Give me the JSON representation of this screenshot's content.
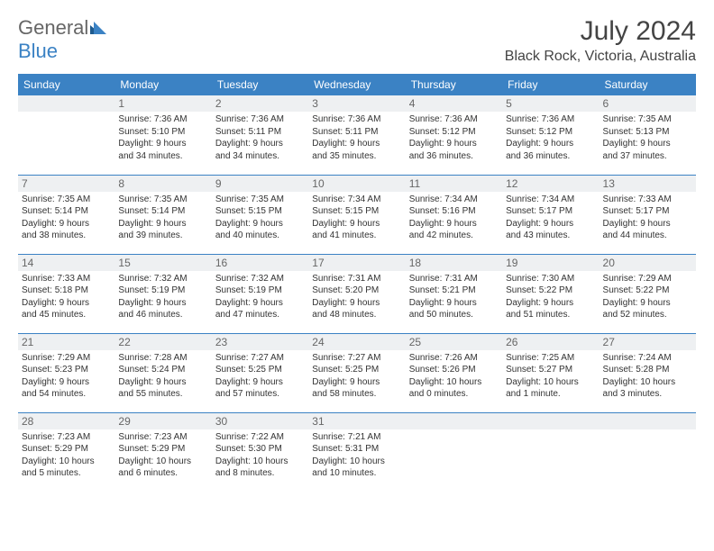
{
  "logo": {
    "text1": "General",
    "text2": "Blue"
  },
  "title": "July 2024",
  "location": "Black Rock, Victoria, Australia",
  "colors": {
    "header_bg": "#3b82c4",
    "header_text": "#ffffff",
    "daynum_bg": "#eef0f2",
    "border": "#3b82c4",
    "body_text": "#333333"
  },
  "day_headers": [
    "Sunday",
    "Monday",
    "Tuesday",
    "Wednesday",
    "Thursday",
    "Friday",
    "Saturday"
  ],
  "weeks": [
    [
      {
        "num": "",
        "lines": []
      },
      {
        "num": "1",
        "lines": [
          "Sunrise: 7:36 AM",
          "Sunset: 5:10 PM",
          "Daylight: 9 hours",
          "and 34 minutes."
        ]
      },
      {
        "num": "2",
        "lines": [
          "Sunrise: 7:36 AM",
          "Sunset: 5:11 PM",
          "Daylight: 9 hours",
          "and 34 minutes."
        ]
      },
      {
        "num": "3",
        "lines": [
          "Sunrise: 7:36 AM",
          "Sunset: 5:11 PM",
          "Daylight: 9 hours",
          "and 35 minutes."
        ]
      },
      {
        "num": "4",
        "lines": [
          "Sunrise: 7:36 AM",
          "Sunset: 5:12 PM",
          "Daylight: 9 hours",
          "and 36 minutes."
        ]
      },
      {
        "num": "5",
        "lines": [
          "Sunrise: 7:36 AM",
          "Sunset: 5:12 PM",
          "Daylight: 9 hours",
          "and 36 minutes."
        ]
      },
      {
        "num": "6",
        "lines": [
          "Sunrise: 7:35 AM",
          "Sunset: 5:13 PM",
          "Daylight: 9 hours",
          "and 37 minutes."
        ]
      }
    ],
    [
      {
        "num": "7",
        "lines": [
          "Sunrise: 7:35 AM",
          "Sunset: 5:14 PM",
          "Daylight: 9 hours",
          "and 38 minutes."
        ]
      },
      {
        "num": "8",
        "lines": [
          "Sunrise: 7:35 AM",
          "Sunset: 5:14 PM",
          "Daylight: 9 hours",
          "and 39 minutes."
        ]
      },
      {
        "num": "9",
        "lines": [
          "Sunrise: 7:35 AM",
          "Sunset: 5:15 PM",
          "Daylight: 9 hours",
          "and 40 minutes."
        ]
      },
      {
        "num": "10",
        "lines": [
          "Sunrise: 7:34 AM",
          "Sunset: 5:15 PM",
          "Daylight: 9 hours",
          "and 41 minutes."
        ]
      },
      {
        "num": "11",
        "lines": [
          "Sunrise: 7:34 AM",
          "Sunset: 5:16 PM",
          "Daylight: 9 hours",
          "and 42 minutes."
        ]
      },
      {
        "num": "12",
        "lines": [
          "Sunrise: 7:34 AM",
          "Sunset: 5:17 PM",
          "Daylight: 9 hours",
          "and 43 minutes."
        ]
      },
      {
        "num": "13",
        "lines": [
          "Sunrise: 7:33 AM",
          "Sunset: 5:17 PM",
          "Daylight: 9 hours",
          "and 44 minutes."
        ]
      }
    ],
    [
      {
        "num": "14",
        "lines": [
          "Sunrise: 7:33 AM",
          "Sunset: 5:18 PM",
          "Daylight: 9 hours",
          "and 45 minutes."
        ]
      },
      {
        "num": "15",
        "lines": [
          "Sunrise: 7:32 AM",
          "Sunset: 5:19 PM",
          "Daylight: 9 hours",
          "and 46 minutes."
        ]
      },
      {
        "num": "16",
        "lines": [
          "Sunrise: 7:32 AM",
          "Sunset: 5:19 PM",
          "Daylight: 9 hours",
          "and 47 minutes."
        ]
      },
      {
        "num": "17",
        "lines": [
          "Sunrise: 7:31 AM",
          "Sunset: 5:20 PM",
          "Daylight: 9 hours",
          "and 48 minutes."
        ]
      },
      {
        "num": "18",
        "lines": [
          "Sunrise: 7:31 AM",
          "Sunset: 5:21 PM",
          "Daylight: 9 hours",
          "and 50 minutes."
        ]
      },
      {
        "num": "19",
        "lines": [
          "Sunrise: 7:30 AM",
          "Sunset: 5:22 PM",
          "Daylight: 9 hours",
          "and 51 minutes."
        ]
      },
      {
        "num": "20",
        "lines": [
          "Sunrise: 7:29 AM",
          "Sunset: 5:22 PM",
          "Daylight: 9 hours",
          "and 52 minutes."
        ]
      }
    ],
    [
      {
        "num": "21",
        "lines": [
          "Sunrise: 7:29 AM",
          "Sunset: 5:23 PM",
          "Daylight: 9 hours",
          "and 54 minutes."
        ]
      },
      {
        "num": "22",
        "lines": [
          "Sunrise: 7:28 AM",
          "Sunset: 5:24 PM",
          "Daylight: 9 hours",
          "and 55 minutes."
        ]
      },
      {
        "num": "23",
        "lines": [
          "Sunrise: 7:27 AM",
          "Sunset: 5:25 PM",
          "Daylight: 9 hours",
          "and 57 minutes."
        ]
      },
      {
        "num": "24",
        "lines": [
          "Sunrise: 7:27 AM",
          "Sunset: 5:25 PM",
          "Daylight: 9 hours",
          "and 58 minutes."
        ]
      },
      {
        "num": "25",
        "lines": [
          "Sunrise: 7:26 AM",
          "Sunset: 5:26 PM",
          "Daylight: 10 hours",
          "and 0 minutes."
        ]
      },
      {
        "num": "26",
        "lines": [
          "Sunrise: 7:25 AM",
          "Sunset: 5:27 PM",
          "Daylight: 10 hours",
          "and 1 minute."
        ]
      },
      {
        "num": "27",
        "lines": [
          "Sunrise: 7:24 AM",
          "Sunset: 5:28 PM",
          "Daylight: 10 hours",
          "and 3 minutes."
        ]
      }
    ],
    [
      {
        "num": "28",
        "lines": [
          "Sunrise: 7:23 AM",
          "Sunset: 5:29 PM",
          "Daylight: 10 hours",
          "and 5 minutes."
        ]
      },
      {
        "num": "29",
        "lines": [
          "Sunrise: 7:23 AM",
          "Sunset: 5:29 PM",
          "Daylight: 10 hours",
          "and 6 minutes."
        ]
      },
      {
        "num": "30",
        "lines": [
          "Sunrise: 7:22 AM",
          "Sunset: 5:30 PM",
          "Daylight: 10 hours",
          "and 8 minutes."
        ]
      },
      {
        "num": "31",
        "lines": [
          "Sunrise: 7:21 AM",
          "Sunset: 5:31 PM",
          "Daylight: 10 hours",
          "and 10 minutes."
        ]
      },
      {
        "num": "",
        "lines": []
      },
      {
        "num": "",
        "lines": []
      },
      {
        "num": "",
        "lines": []
      }
    ]
  ]
}
